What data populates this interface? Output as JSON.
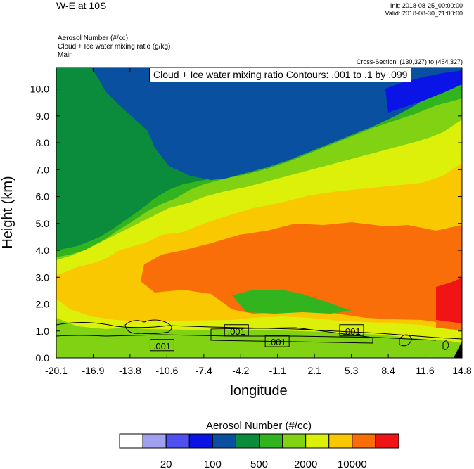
{
  "header": {
    "title": "W-E at 10S",
    "init": "Init: 2018-08-25_00:00:00",
    "valid": "Valid: 2018-08-30_21:00:00",
    "fields": [
      "Aerosol Number  (#/cc)",
      "Cloud + Ice water mixing ratio   (g/kg)",
      "Main"
    ],
    "cross_section": "Cross-Section: (130,327) to (454,327)",
    "contour_info": "Cloud + Ice water mixing ratio Contours: .001 to .1 by .099"
  },
  "chart_data": {
    "type": "heatmap",
    "xlabel": "longitude",
    "ylabel": "Height (km)",
    "x_ticks": [
      "-20.1",
      "-16.9",
      "-13.8",
      "-10.6",
      "-7.4",
      "-4.2",
      "-1.1",
      "2.1",
      "5.3",
      "8.4",
      "11.6",
      "14.8"
    ],
    "y_ticks": [
      "0.0",
      "1.0",
      "2.0",
      "3.0",
      "4.0",
      "5.0",
      "6.0",
      "7.0",
      "8.0",
      "9.0",
      "10.0"
    ],
    "xlim": [
      -20.1,
      14.8
    ],
    "ylim": [
      0,
      10.8
    ],
    "colorbar": {
      "title": "Aerosol Number  (#/cc)",
      "colors": [
        "#ffffff",
        "#a0a0f0",
        "#5050f0",
        "#0a14e6",
        "#0a50a0",
        "#0a8c3c",
        "#32b41e",
        "#82d214",
        "#dcf00a",
        "#fac800",
        "#fa6e0a",
        "#f01414"
      ],
      "labels": [
        "20",
        "100",
        "500",
        "2000",
        "10000"
      ]
    },
    "contour_labels": [
      {
        "text": ".001",
        "x": -11.0,
        "y": 0.45
      },
      {
        "text": ".001",
        "x": -4.6,
        "y": 1.0
      },
      {
        "text": ".001",
        "x": -1.1,
        "y": 0.6
      },
      {
        "text": ".001",
        "x": 5.3,
        "y": 1.0
      }
    ]
  }
}
